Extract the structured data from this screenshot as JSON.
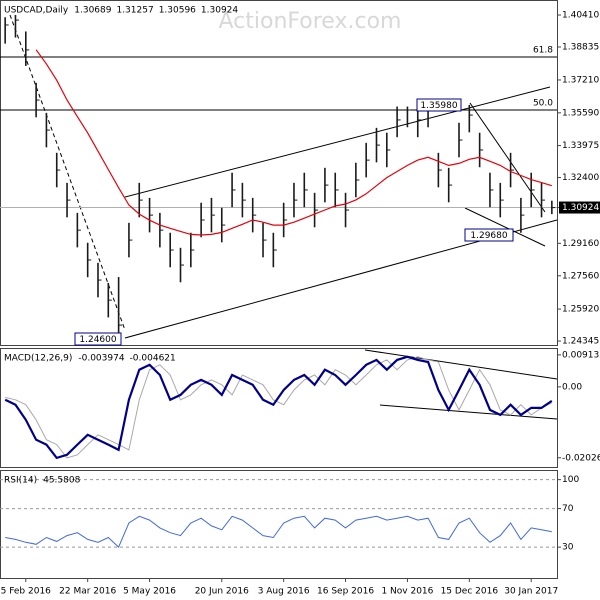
{
  "chart_data": [
    {
      "type": "ohlc",
      "title": "USDCAD,Daily",
      "ohlc": [
        1.30689,
        1.31257,
        1.30596,
        1.30924
      ],
      "color": "#1a1a1a",
      "high": [
        1.403,
        1.4041,
        1.396,
        1.3707,
        1.3559,
        1.3362,
        1.3214,
        1.3066,
        1.2919,
        1.282,
        1.2721,
        1.275,
        1.3017,
        1.3214,
        1.314,
        1.3066,
        1.2968,
        1.2894,
        1.2968,
        1.3116,
        1.314,
        1.3091,
        1.3264,
        1.3214,
        1.314,
        1.3017,
        1.2968,
        1.3116,
        1.3214,
        1.3264,
        1.3165,
        1.3288,
        1.3264,
        1.3165,
        1.3313,
        1.3411,
        1.3485,
        1.3461,
        1.359,
        1.359,
        1.358,
        1.359,
        1.3362,
        1.3288,
        1.351,
        1.3598,
        1.3461,
        1.3264,
        1.3214,
        1.3362,
        1.314,
        1.3264,
        1.3214,
        1.3126
      ],
      "low": [
        1.39,
        1.393,
        1.379,
        1.3537,
        1.3389,
        1.3192,
        1.3044,
        1.2896,
        1.2749,
        1.265,
        1.2551,
        1.246,
        1.2847,
        1.3044,
        1.297,
        1.2896,
        1.2798,
        1.2724,
        1.2798,
        1.2946,
        1.297,
        1.2921,
        1.3094,
        1.3044,
        1.297,
        1.2847,
        1.2798,
        1.2946,
        1.3044,
        1.3094,
        1.2995,
        1.3118,
        1.3094,
        1.2995,
        1.3143,
        1.3241,
        1.3315,
        1.3291,
        1.3439,
        1.3488,
        1.3439,
        1.3488,
        1.3192,
        1.3118,
        1.334,
        1.3463,
        1.3291,
        1.3094,
        1.3044,
        1.3192,
        1.2968,
        1.3094,
        1.3044,
        1.306
      ],
      "close": [
        1.3992,
        1.4016,
        1.3869,
        1.3622,
        1.3474,
        1.3277,
        1.3129,
        1.2981,
        1.2834,
        1.2735,
        1.2636,
        1.2513,
        1.2932,
        1.3129,
        1.3055,
        1.2981,
        1.2883,
        1.2809,
        1.2883,
        1.3031,
        1.3055,
        1.3006,
        1.3179,
        1.3129,
        1.3055,
        1.2932,
        1.2883,
        1.3031,
        1.3129,
        1.3179,
        1.308,
        1.3203,
        1.3179,
        1.308,
        1.3228,
        1.3326,
        1.34,
        1.3376,
        1.3524,
        1.3573,
        1.3524,
        1.3573,
        1.3277,
        1.3203,
        1.3425,
        1.3548,
        1.3376,
        1.3179,
        1.3129,
        1.3277,
        1.3055,
        1.3179,
        1.3129,
        1.3092
      ],
      "ma": {
        "color": "#e8000b",
        "values": [
          null,
          null,
          null,
          1.387,
          1.38,
          1.372,
          1.3622,
          1.354,
          1.346,
          1.337,
          1.328,
          1.319,
          1.3105,
          1.306,
          1.303,
          1.3006,
          1.299,
          1.2975,
          1.296,
          1.2957,
          1.296,
          1.297,
          1.299,
          1.301,
          1.3031,
          1.302,
          1.3006,
          1.3006,
          1.302,
          1.304,
          1.306,
          1.308,
          1.31,
          1.311,
          1.313,
          1.316,
          1.32,
          1.324,
          1.327,
          1.33,
          1.3326,
          1.334,
          1.332,
          1.33,
          1.331,
          1.333,
          1.334,
          1.332,
          1.33,
          1.327,
          1.325,
          1.323,
          1.3215,
          1.32
        ]
      },
      "ylim": [
        1.2415,
        1.4115
      ],
      "yticks": [
        {
          "value": 1.4041,
          "label": "1.40410"
        },
        1.38835,
        {
          "value": 1.3721,
          "label": "1.37210"
        },
        {
          "value": 1.3559,
          "label": "1.35590"
        },
        1.33975,
        {
          "value": 1.324,
          "label": "1.32400"
        },
        1.30924,
        {
          "value": 1.2916,
          "label": "1.29160"
        },
        {
          "value": 1.2756,
          "label": "1.27560"
        },
        {
          "value": 1.2592,
          "label": "1.25920"
        },
        1.24345
      ],
      "annotations": [
        "61.8",
        "50.0",
        "1.35980",
        "1.29680",
        "1.24600"
      ],
      "watermark": "ActionForex.com"
    },
    {
      "type": "line",
      "title": "MACD(12,26,9)",
      "readout": [
        -0.003974,
        -0.004621
      ],
      "series": [
        {
          "color": "#00008b",
          "values": [
            -0.0037,
            -0.0051,
            -0.0094,
            -0.0151,
            -0.0165,
            -0.0203,
            -0.0194,
            -0.0165,
            -0.0137,
            -0.0151,
            -0.0165,
            -0.018,
            -0.0037,
            0.0049,
            0.0063,
            0.0034,
            -0.0037,
            -0.0023,
            0.0006,
            0.002,
            0.0006,
            -0.0023,
            0.0034,
            0.002,
            0.0006,
            -0.0037,
            -0.0051,
            -0.0009,
            0.002,
            0.0034,
            0.0006,
            0.0049,
            0.0034,
            0.0006,
            0.0034,
            0.0063,
            0.0077,
            0.0049,
            0.0077,
            0.0086,
            0.0077,
            0.0071,
            -0.0009,
            -0.0066,
            -0.0009,
            0.0049,
            0.0006,
            -0.0066,
            -0.008,
            -0.0051,
            -0.008,
            -0.006,
            -0.006,
            -0.004
          ]
        },
        {
          "color": "#a9a9a9",
          "values": [
            -0.003,
            -0.0037,
            -0.0051,
            -0.0094,
            -0.0151,
            -0.0165,
            -0.0203,
            -0.0194,
            -0.0165,
            -0.0137,
            -0.0151,
            -0.0165,
            -0.018,
            -0.0037,
            0.0049,
            0.0063,
            0.0034,
            -0.0037,
            -0.0023,
            0.0006,
            0.002,
            0.0006,
            -0.0023,
            0.0034,
            0.002,
            0.0006,
            -0.0037,
            -0.0051,
            -0.0009,
            0.002,
            0.0034,
            0.0006,
            0.0049,
            0.0034,
            0.0006,
            0.0034,
            0.0063,
            0.0077,
            0.0049,
            0.0077,
            0.0086,
            0.0077,
            0.0071,
            -0.0009,
            -0.0066,
            -0.0009,
            0.0049,
            0.0006,
            -0.0066,
            -0.008,
            -0.0051,
            -0.008,
            -0.006,
            -0.0046
          ]
        }
      ],
      "ylim": [
        -0.0229,
        0.0111
      ],
      "yticks": [
        0.009132,
        {
          "value": 0,
          "label": "0.00"
        },
        -0.020269
      ]
    },
    {
      "type": "line",
      "title": "RSI(14)",
      "readout": [
        45.5808
      ],
      "series": [
        {
          "color": "#4169e1",
          "values": [
            40,
            38,
            35,
            33,
            40,
            36,
            42,
            45,
            38,
            35,
            40,
            30,
            55,
            62,
            58,
            50,
            45,
            42,
            55,
            60,
            52,
            48,
            62,
            58,
            50,
            42,
            40,
            55,
            60,
            62,
            50,
            60,
            58,
            50,
            58,
            60,
            62,
            58,
            60,
            62,
            58,
            60,
            40,
            38,
            55,
            60,
            45,
            35,
            42,
            55,
            38,
            50,
            48,
            46
          ]
        }
      ],
      "ylim": [
        -2,
        110
      ],
      "yticks": [
        100,
        70,
        30
      ],
      "grid": "dashed",
      "categories": [
        null,
        null,
        "5 Feb 2016",
        null,
        null,
        null,
        null,
        null,
        "22 Mar 2016",
        null,
        null,
        null,
        null,
        null,
        "5 May 2016",
        null,
        null,
        null,
        null,
        null,
        null,
        "20 Jun 2016",
        null,
        null,
        null,
        null,
        null,
        "3 Aug 2016",
        null,
        null,
        null,
        null,
        null,
        "16 Sep 2016",
        null,
        null,
        null,
        null,
        null,
        "1 Nov 2016",
        null,
        null,
        null,
        null,
        null,
        "15 Dec 2016",
        null,
        null,
        null,
        null,
        null,
        "30 Jan 2017",
        null,
        null
      ]
    }
  ]
}
